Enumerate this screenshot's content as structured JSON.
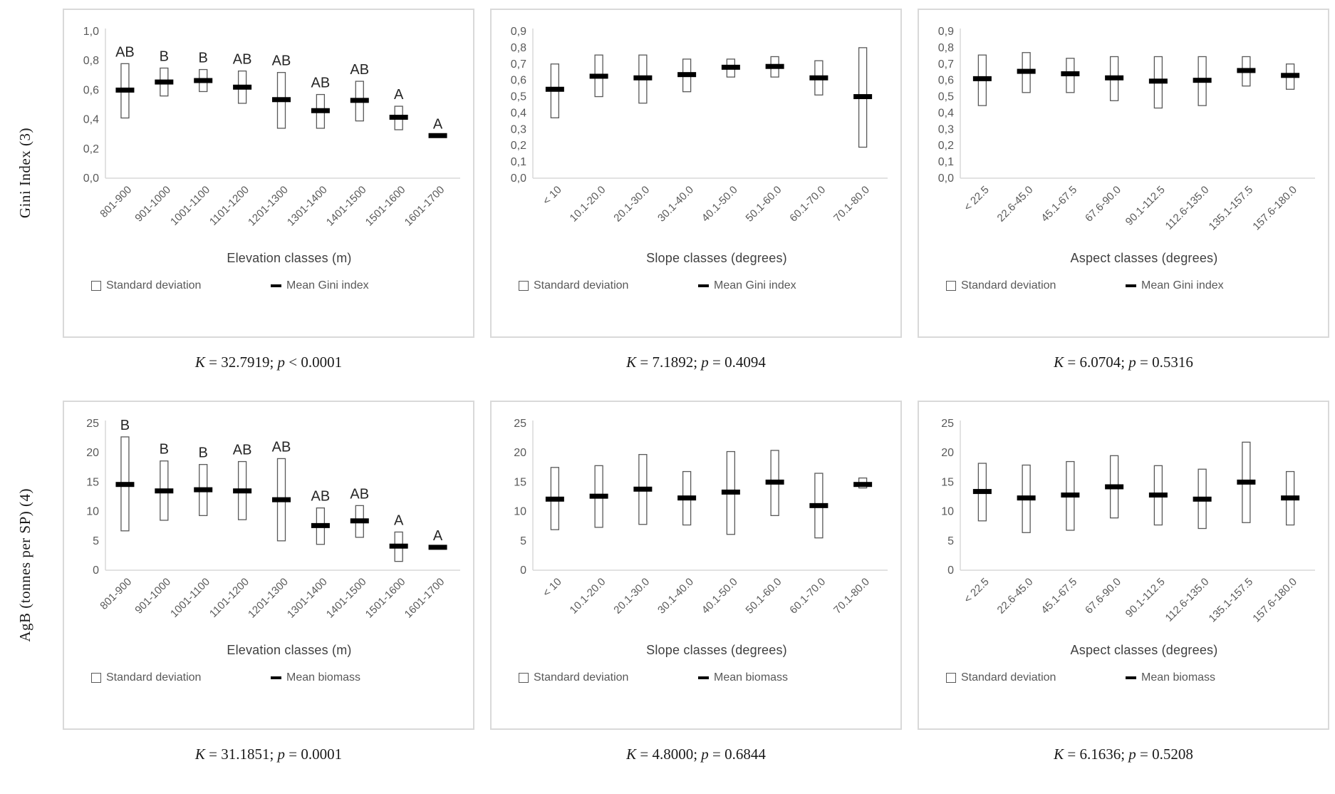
{
  "figure": {
    "row_labels": [
      "Gini Index (3)",
      "AgB (tonnes per SP) (4)"
    ]
  },
  "colors": {
    "axis": "#d9d9d9",
    "bar_stroke": "#595959",
    "mean": "#000000",
    "tick_text": "#595959",
    "box_border": "#d9d9d9"
  },
  "chart_data": {
    "type": "bar",
    "subtype": "floating-range-bars-with-mean-marker",
    "charts": [
      {
        "name": "gini-by-elevation",
        "xlabel": "Elevation classes (m)",
        "ylim": [
          0,
          1.0
        ],
        "yticks": [
          0,
          0.2,
          0.4,
          0.6,
          0.8,
          1.0
        ],
        "ytick_labels": [
          "0,0",
          "0,2",
          "0,4",
          "0,6",
          "0,8",
          "1,0"
        ],
        "categories": [
          "801-900",
          "901-1000",
          "1001-1100",
          "1101-1200",
          "1201-1300",
          "1301-1400",
          "1401-1500",
          "1501-1600",
          "1601-1700"
        ],
        "sd_low": [
          0.41,
          0.56,
          0.59,
          0.51,
          0.34,
          0.34,
          0.39,
          0.33,
          null
        ],
        "sd_high": [
          0.78,
          0.75,
          0.74,
          0.73,
          0.72,
          0.57,
          0.66,
          0.49,
          null
        ],
        "mean": [
          0.6,
          0.655,
          0.665,
          0.62,
          0.535,
          0.46,
          0.53,
          0.415,
          0.29
        ],
        "letters": [
          "AB",
          "B",
          "B",
          "AB",
          "AB",
          "AB",
          "AB",
          "A",
          "A"
        ],
        "legend": {
          "sd": "Standard deviation",
          "mean": "Mean Gini index"
        },
        "stat": {
          "k_label": "K",
          "k_text": " = 32.7919; ",
          "p_label": "p",
          "p_text": " < 0.0001"
        }
      },
      {
        "name": "gini-by-slope",
        "xlabel": "Slope classes (degrees)",
        "ylim": [
          0,
          0.9
        ],
        "yticks": [
          0,
          0.1,
          0.2,
          0.3,
          0.4,
          0.5,
          0.6,
          0.7,
          0.8,
          0.9
        ],
        "ytick_labels": [
          "0,0",
          "0,1",
          "0,2",
          "0,3",
          "0,4",
          "0,5",
          "0,6",
          "0,7",
          "0,8",
          "0,9"
        ],
        "categories": [
          "< 10",
          "10.1-20.0",
          "20.1-30.0",
          "30.1-40.0",
          "40.1-50.0",
          "50.1-60.0",
          "60.1-70.0",
          "70.1-80.0"
        ],
        "sd_low": [
          0.37,
          0.5,
          0.46,
          0.53,
          0.62,
          0.62,
          0.51,
          0.19
        ],
        "sd_high": [
          0.7,
          0.755,
          0.755,
          0.73,
          0.73,
          0.745,
          0.72,
          0.8
        ],
        "mean": [
          0.545,
          0.625,
          0.615,
          0.635,
          0.68,
          0.685,
          0.615,
          0.5
        ],
        "letters": null,
        "legend": {
          "sd": "Standard deviation",
          "mean": "Mean Gini index"
        },
        "stat": {
          "k_label": "K",
          "k_text": " = 7.1892; ",
          "p_label": "p",
          "p_text": " = 0.4094"
        }
      },
      {
        "name": "gini-by-aspect",
        "xlabel": "Aspect classes (degrees)",
        "ylim": [
          0,
          0.9
        ],
        "yticks": [
          0,
          0.1,
          0.2,
          0.3,
          0.4,
          0.5,
          0.6,
          0.7,
          0.8,
          0.9
        ],
        "ytick_labels": [
          "0,0",
          "0,1",
          "0,2",
          "0,3",
          "0,4",
          "0,5",
          "0,6",
          "0,7",
          "0,8",
          "0,9"
        ],
        "categories": [
          "< 22.5",
          "22.6-45.0",
          "45.1-67.5",
          "67.6-90.0",
          "90.1-112.5",
          "112.6-135.0",
          "135.1-157.5",
          "157.6-180.0"
        ],
        "sd_low": [
          0.445,
          0.525,
          0.525,
          0.475,
          0.43,
          0.445,
          0.565,
          0.545
        ],
        "sd_high": [
          0.755,
          0.77,
          0.735,
          0.745,
          0.745,
          0.745,
          0.745,
          0.7
        ],
        "mean": [
          0.61,
          0.655,
          0.64,
          0.615,
          0.595,
          0.6,
          0.66,
          0.63
        ],
        "letters": null,
        "legend": {
          "sd": "Standard deviation",
          "mean": "Mean Gini index"
        },
        "stat": {
          "k_label": "K",
          "k_text": " = 6.0704; ",
          "p_label": "p",
          "p_text": " = 0.5316"
        }
      },
      {
        "name": "agb-by-elevation",
        "xlabel": "Elevation classes (m)",
        "ylim": [
          0,
          25
        ],
        "yticks": [
          0,
          5,
          10,
          15,
          20,
          25
        ],
        "ytick_labels": [
          "0",
          "5",
          "10",
          "15",
          "20",
          "25"
        ],
        "categories": [
          "801-900",
          "901-1000",
          "1001-1100",
          "1101-1200",
          "1201-1300",
          "1301-1400",
          "1401-1500",
          "1501-1600",
          "1601-1700"
        ],
        "sd_low": [
          6.7,
          8.5,
          9.3,
          8.6,
          5.0,
          4.4,
          5.6,
          1.5,
          null
        ],
        "sd_high": [
          22.7,
          18.6,
          18.0,
          18.5,
          19.0,
          10.6,
          11.0,
          6.5,
          null
        ],
        "mean": [
          14.6,
          13.5,
          13.7,
          13.5,
          12.0,
          7.6,
          8.4,
          4.1,
          3.9
        ],
        "letters": [
          "B",
          "B",
          "B",
          "AB",
          "AB",
          "AB",
          "AB",
          "A",
          "A"
        ],
        "legend": {
          "sd": "Standard deviation",
          "mean": "Mean biomass"
        },
        "stat": {
          "k_label": "K",
          "k_text": " = 31.1851; ",
          "p_label": "p",
          "p_text": " = 0.0001"
        }
      },
      {
        "name": "agb-by-slope",
        "xlabel": "Slope classes (degrees)",
        "ylim": [
          0,
          25
        ],
        "yticks": [
          0,
          5,
          10,
          15,
          20,
          25
        ],
        "ytick_labels": [
          "0",
          "5",
          "10",
          "15",
          "20",
          "25"
        ],
        "categories": [
          "< 10",
          "10.1-20.0",
          "20.1-30.0",
          "30.1-40.0",
          "40.1-50.0",
          "50.1-60.0",
          "60.1-70.0",
          "70.1-80.0"
        ],
        "sd_low": [
          6.9,
          7.3,
          7.8,
          7.7,
          6.1,
          9.3,
          5.5,
          14.0
        ],
        "sd_high": [
          17.5,
          17.8,
          19.7,
          16.8,
          20.2,
          20.4,
          16.5,
          15.7
        ],
        "mean": [
          12.1,
          12.6,
          13.8,
          12.3,
          13.3,
          15.0,
          11.0,
          14.6
        ],
        "letters": null,
        "legend": {
          "sd": "Standard deviation",
          "mean": "Mean biomass"
        },
        "stat": {
          "k_label": "K",
          "k_text": " = 4.8000; ",
          "p_label": "p",
          "p_text": " = 0.6844"
        }
      },
      {
        "name": "agb-by-aspect",
        "xlabel": "Aspect classes (degrees)",
        "ylim": [
          0,
          25
        ],
        "yticks": [
          0,
          5,
          10,
          15,
          20,
          25
        ],
        "ytick_labels": [
          "0",
          "5",
          "10",
          "15",
          "20",
          "25"
        ],
        "categories": [
          "< 22.5",
          "22.6-45.0",
          "45.1-67.5",
          "67.6-90.0",
          "90.1-112.5",
          "112.6-135.0",
          "135.1-157.5",
          "157.6-180.0"
        ],
        "sd_low": [
          8.4,
          6.4,
          6.8,
          8.9,
          7.7,
          7.1,
          8.1,
          7.7
        ],
        "sd_high": [
          18.2,
          17.9,
          18.5,
          19.5,
          17.8,
          17.2,
          21.8,
          16.8
        ],
        "mean": [
          13.4,
          12.3,
          12.8,
          14.2,
          12.8,
          12.1,
          15.0,
          12.3
        ],
        "letters": null,
        "legend": {
          "sd": "Standard deviation",
          "mean": "Mean biomass"
        },
        "stat": {
          "k_label": "K",
          "k_text": " = 6.1636; ",
          "p_label": "p",
          "p_text": " = 0.5208"
        }
      }
    ]
  }
}
